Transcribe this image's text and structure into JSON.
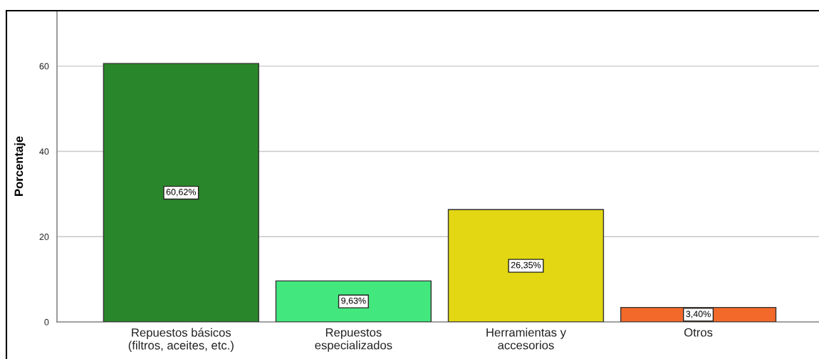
{
  "chart_data": {
    "type": "bar",
    "ylabel": "Porcentaje",
    "categories": [
      "Repuestos básicos\n(filtros, aceites, etc.)",
      "Repuestos\nespecializados",
      "Herramientas y\naccesorios",
      "Otros"
    ],
    "values": [
      60.62,
      9.63,
      26.35,
      3.4
    ],
    "colors": [
      "#2a862a",
      "#42e87e",
      "#e2d712",
      "#f2692a"
    ],
    "value_labels": [
      "60,62%",
      "9,63%",
      "26,35%",
      "3,40%"
    ],
    "ylim": [
      0,
      73
    ],
    "yticks": [
      0,
      20,
      40,
      60
    ],
    "grid": "y",
    "legend": false
  }
}
